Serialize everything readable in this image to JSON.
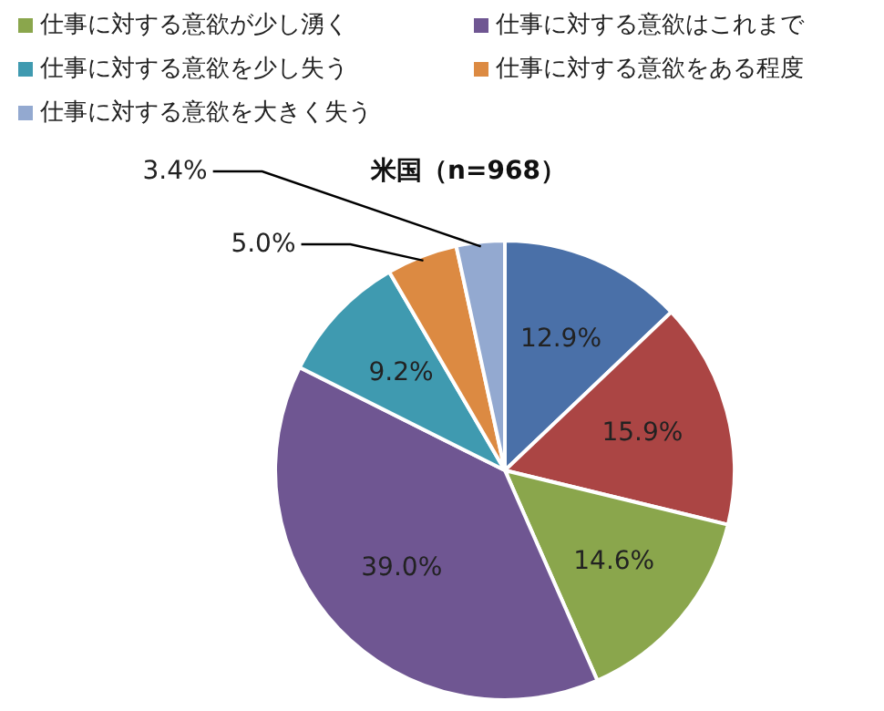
{
  "chart_data": {
    "type": "pie",
    "title": "米国（n=968）",
    "categories": [
      null,
      null,
      "仕事に対する意欲が少し湧く",
      "仕事に対する意欲はこれまで",
      "仕事に対する意欲を少し失う",
      "仕事に対する意欲をある程度",
      "仕事に対する意欲を大きく失う"
    ],
    "values": [
      12.9,
      15.9,
      14.6,
      39.0,
      9.2,
      5.0,
      3.4
    ],
    "value_labels": [
      "12.9%",
      "15.9%",
      "14.6%",
      "39.0%",
      "9.2%",
      "5.0%",
      "3.4%"
    ],
    "colors": [
      "#4a70a8",
      "#ab4544",
      "#8aa64c",
      "#6f5692",
      "#3f9ab0",
      "#dc8a42",
      "#93a9d0"
    ],
    "legend": "top"
  }
}
